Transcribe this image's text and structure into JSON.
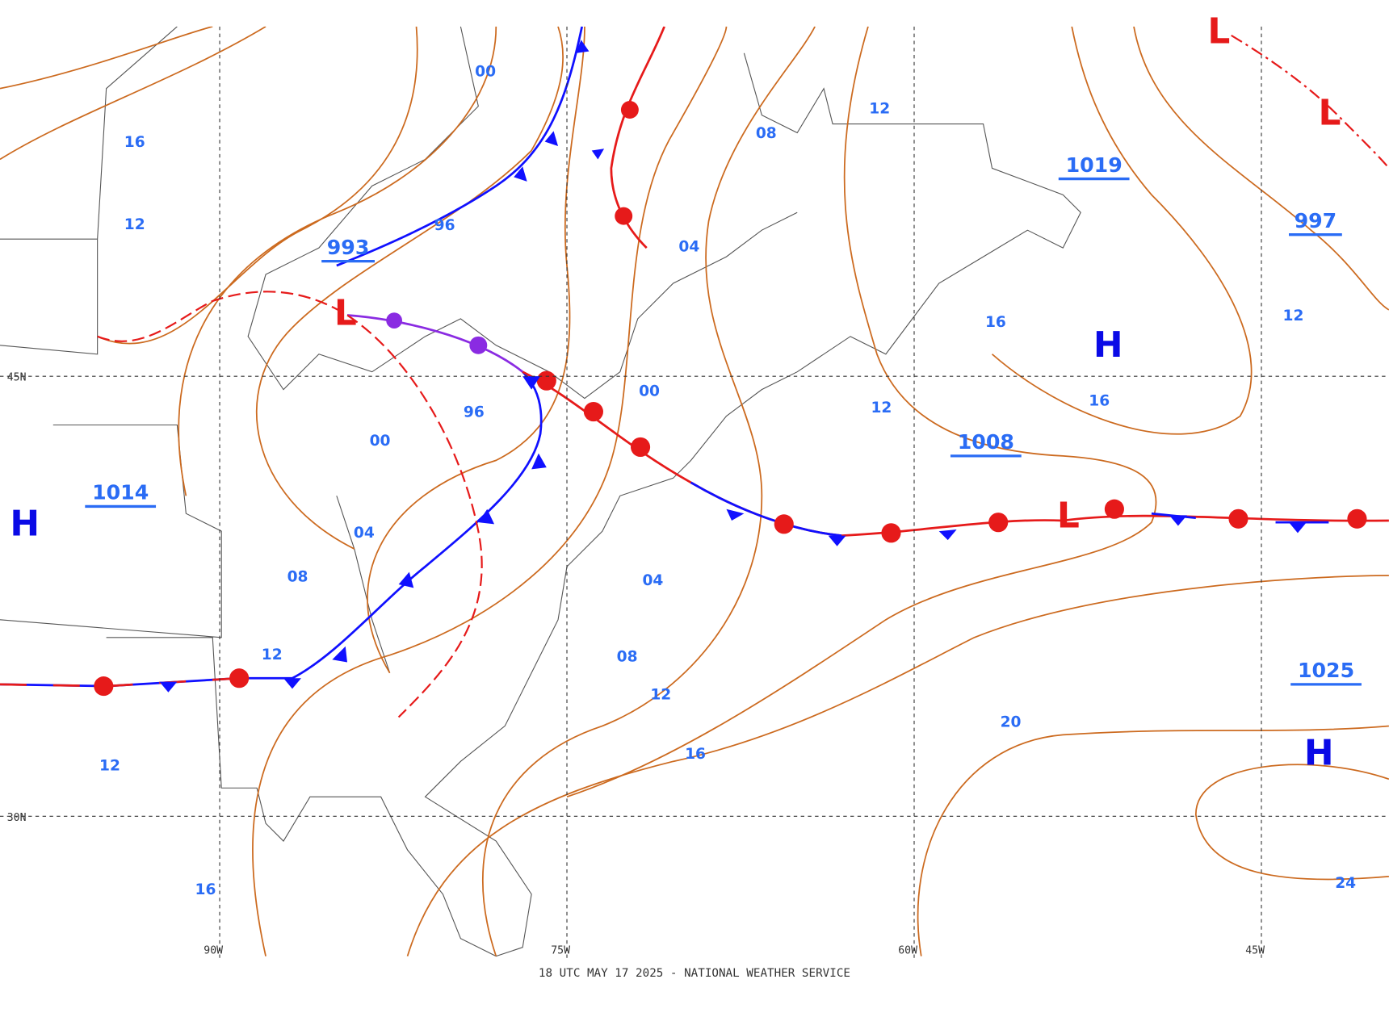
{
  "footer": "18 UTC MAY 17 2025 - NATIONAL WEATHER SERVICE",
  "grid_labels": [
    "45N",
    "30N",
    "90W",
    "75W",
    "60W",
    "45W"
  ],
  "pressure_labels": [
    "1019",
    "997",
    "993",
    "1014",
    "1008",
    "1025"
  ],
  "highs": [
    "H",
    "H",
    "H"
  ],
  "lows": [
    "L",
    "L",
    "L",
    "L"
  ],
  "isobar_labels": [
    "00",
    "96",
    "04",
    "08",
    "12",
    "16",
    "12",
    "00",
    "96",
    "00",
    "12",
    "16",
    "16",
    "12",
    "04",
    "08",
    "04",
    "12",
    "08",
    "12",
    "16",
    "20",
    "24",
    "12",
    "16"
  ]
}
